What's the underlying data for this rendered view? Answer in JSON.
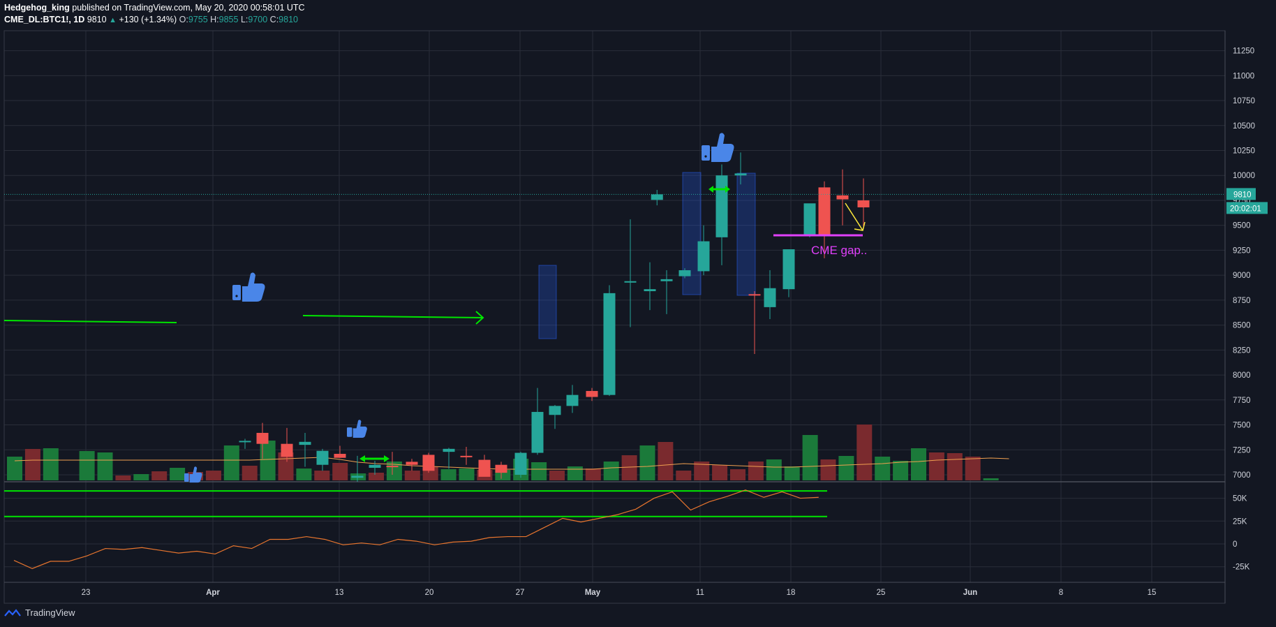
{
  "header": {
    "author": "Hedgehog_king",
    "published": "published on TradingView.com, May 20, 2020 00:58:01 UTC",
    "symbol": "CME_DL:BTC1!, 1D",
    "last": "9810",
    "change": "+130 (+1.34%)",
    "o_label": "O:",
    "o": "9755",
    "h_label": "H:",
    "h": "9855",
    "l_label": "L:",
    "l": "9700",
    "c_label": "C:",
    "c": "9810"
  },
  "price_badge": "9810",
  "countdown_badge": "20:02:01",
  "annotation_text": "CME gap..",
  "footer_brand": "TradingView",
  "colors": {
    "up": "#26a69a",
    "down": "#ef5350",
    "bg": "#131722",
    "grid": "#2a2e39",
    "annotation": "#e040fb",
    "trend": "#00e600",
    "arrow": "#ffeb3b"
  },
  "chart_data": {
    "type": "candlestick",
    "symbol": "CME_DL:BTC1!",
    "interval": "1D",
    "x_tick_labels": [
      "23",
      "Apr",
      "13",
      "20",
      "27",
      "May",
      "11",
      "18",
      "25",
      "Jun",
      "8",
      "15"
    ],
    "price_axis": {
      "ticks": [
        7000,
        7250,
        7500,
        7750,
        8000,
        8250,
        8500,
        8750,
        9000,
        9250,
        9500,
        9750,
        10000,
        10250,
        10500,
        10750,
        11000,
        11250
      ],
      "ylim": [
        6930,
        11450
      ]
    },
    "osc_axis": {
      "ticks": [
        "50K",
        "25K",
        "0",
        "-25K"
      ],
      "ylim": [
        -42000,
        68000
      ]
    },
    "candles": [
      {
        "o": 7330,
        "h": 7360,
        "l": 7260,
        "c": 7340
      },
      {
        "o": 7420,
        "h": 7520,
        "l": 7160,
        "c": 7310
      },
      {
        "o": 7310,
        "h": 7470,
        "l": 7130,
        "c": 7180
      },
      {
        "o": 7300,
        "h": 7420,
        "l": 7080,
        "c": 7330
      },
      {
        "o": 7100,
        "h": 7260,
        "l": 7040,
        "c": 7240
      },
      {
        "o": 7210,
        "h": 7290,
        "l": 7170,
        "c": 7170
      },
      {
        "o": 6970,
        "h": 7190,
        "l": 6930,
        "c": 6990
      },
      {
        "o": 7070,
        "h": 7140,
        "l": 7000,
        "c": 7100
      },
      {
        "o": 7090,
        "h": 7230,
        "l": 7000,
        "c": 7080
      },
      {
        "o": 7130,
        "h": 7160,
        "l": 7040,
        "c": 7100
      },
      {
        "o": 7200,
        "h": 7220,
        "l": 7020,
        "c": 7040
      },
      {
        "o": 7230,
        "h": 7270,
        "l": 7060,
        "c": 7260
      },
      {
        "o": 7190,
        "h": 7280,
        "l": 7100,
        "c": 7180
      },
      {
        "o": 7150,
        "h": 7200,
        "l": 6990,
        "c": 6980
      },
      {
        "o": 7100,
        "h": 7130,
        "l": 6960,
        "c": 7020
      },
      {
        "o": 7000,
        "h": 7230,
        "l": 6970,
        "c": 7220
      },
      {
        "o": 7220,
        "h": 7870,
        "l": 7200,
        "c": 7630
      },
      {
        "o": 7600,
        "h": 7700,
        "l": 7460,
        "c": 7690
      },
      {
        "o": 7690,
        "h": 7900,
        "l": 7620,
        "c": 7800
      },
      {
        "o": 7840,
        "h": 7870,
        "l": 7740,
        "c": 7780
      },
      {
        "o": 7800,
        "h": 8900,
        "l": 7790,
        "c": 8820
      },
      {
        "o": 8930,
        "h": 9560,
        "l": 8480,
        "c": 8940
      },
      {
        "o": 8840,
        "h": 9130,
        "l": 8650,
        "c": 8860
      },
      {
        "o": 8940,
        "h": 9050,
        "l": 8610,
        "c": 8960
      },
      {
        "o": 8990,
        "h": 9070,
        "l": 8970,
        "c": 9050
      },
      {
        "o": 9040,
        "h": 9500,
        "l": 9000,
        "c": 9340
      },
      {
        "o": 9380,
        "h": 10110,
        "l": 9100,
        "c": 10000
      },
      {
        "o": 10000,
        "h": 10230,
        "l": 9910,
        "c": 10020
      },
      {
        "o": 8810,
        "h": 8840,
        "l": 8210,
        "c": 8800
      },
      {
        "o": 8680,
        "h": 9050,
        "l": 8560,
        "c": 8870
      },
      {
        "o": 8860,
        "h": 9250,
        "l": 8780,
        "c": 9260
      },
      {
        "o": 9400,
        "h": 9700,
        "l": 9380,
        "c": 9720
      },
      {
        "o": 9880,
        "h": 9940,
        "l": 9170,
        "c": 9400
      },
      {
        "o": 9800,
        "h": 10060,
        "l": 9500,
        "c": 9760
      },
      {
        "o": 9750,
        "h": 9970,
        "l": 9490,
        "c": 9680
      },
      {
        "o": 9755,
        "h": 9855,
        "l": 9700,
        "c": 9810
      }
    ],
    "volume": [
      {
        "v": 34,
        "up": true
      },
      {
        "v": 45,
        "up": false
      },
      {
        "v": 46,
        "up": true
      },
      {
        "v": 0,
        "up": true
      },
      {
        "v": 42,
        "up": true
      },
      {
        "v": 40,
        "up": true
      },
      {
        "v": 7,
        "up": false
      },
      {
        "v": 9,
        "up": true
      },
      {
        "v": 13,
        "up": false
      },
      {
        "v": 18,
        "up": true
      },
      {
        "v": 12,
        "up": false
      },
      {
        "v": 14,
        "up": false
      },
      {
        "v": 50,
        "up": true
      },
      {
        "v": 21,
        "up": false
      },
      {
        "v": 57,
        "up": true
      },
      {
        "v": 40,
        "up": false
      },
      {
        "v": 17,
        "up": true
      },
      {
        "v": 14,
        "up": false
      },
      {
        "v": 25,
        "up": false
      },
      {
        "v": 10,
        "up": true
      },
      {
        "v": 11,
        "up": false
      },
      {
        "v": 27,
        "up": true
      },
      {
        "v": 14,
        "up": false
      },
      {
        "v": 20,
        "up": false
      },
      {
        "v": 16,
        "up": true
      },
      {
        "v": 17,
        "up": true
      },
      {
        "v": 15,
        "up": false
      },
      {
        "v": 15,
        "up": true
      },
      {
        "v": 31,
        "up": true
      },
      {
        "v": 26,
        "up": true
      },
      {
        "v": 14,
        "up": false
      },
      {
        "v": 20,
        "up": true
      },
      {
        "v": 17,
        "up": false
      },
      {
        "v": 27,
        "up": true
      },
      {
        "v": 36,
        "up": false
      },
      {
        "v": 50,
        "up": true
      },
      {
        "v": 55,
        "up": false
      },
      {
        "v": 14,
        "up": false
      },
      {
        "v": 27,
        "up": false
      },
      {
        "v": 22,
        "up": false
      },
      {
        "v": 16,
        "up": false
      },
      {
        "v": 27,
        "up": false
      },
      {
        "v": 30,
        "up": true
      },
      {
        "v": 20,
        "up": true
      },
      {
        "v": 65,
        "up": true
      },
      {
        "v": 30,
        "up": false
      },
      {
        "v": 35,
        "up": true
      },
      {
        "v": 80,
        "up": false
      },
      {
        "v": 34,
        "up": true
      },
      {
        "v": 28,
        "up": true
      },
      {
        "v": 46,
        "up": true
      },
      {
        "v": 40,
        "up": false
      },
      {
        "v": 39,
        "up": false
      },
      {
        "v": 34,
        "up": false
      },
      {
        "v": 3,
        "up": true
      }
    ],
    "volume_ma": [
      28,
      29,
      29,
      29,
      29,
      29,
      29,
      29,
      29,
      29,
      29,
      29,
      29,
      29,
      30,
      31,
      32,
      33,
      30,
      26,
      24,
      23,
      21,
      20,
      19,
      18,
      17,
      16,
      16,
      16,
      16,
      16,
      16,
      18,
      19,
      20,
      22,
      24,
      23,
      22,
      21,
      20,
      19,
      19,
      20,
      21,
      22,
      23,
      24,
      26,
      27,
      29,
      30,
      31,
      32,
      31
    ],
    "oscillator": [
      -18000,
      -27000,
      -19000,
      -19000,
      -13000,
      -5000,
      -6000,
      -4000,
      -7000,
      -10000,
      -8000,
      -11000,
      -2000,
      -5000,
      5000,
      5000,
      8000,
      5000,
      -1000,
      1000,
      -1000,
      5000,
      3000,
      -1000,
      2000,
      3000,
      7000,
      8000,
      8000,
      18000,
      28000,
      24000,
      28000,
      32000,
      38000,
      50000,
      57000,
      37000,
      46000,
      52000,
      59000,
      51000,
      57000,
      50000,
      51000
    ],
    "levels": {
      "osc_green_1": 58000,
      "osc_green_2": 30000,
      "cme_gap_price": 9400,
      "last_price": 9810
    },
    "annotations": [
      "CME gap.."
    ]
  }
}
